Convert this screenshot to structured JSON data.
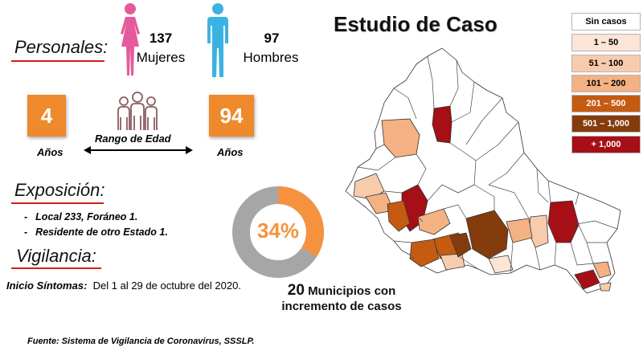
{
  "title": "Estudio de Caso",
  "personales": {
    "label": "Personales:",
    "women_count": "137",
    "women_label": "Mujeres",
    "men_count": "97",
    "men_label": "Hombres"
  },
  "age_range": {
    "min": "4",
    "max": "94",
    "label": "Rango de Edad",
    "unit_min": "Años",
    "unit_max": "Años"
  },
  "exposicion": {
    "label": "Exposición:",
    "items": [
      "Local  233, Foráneo 1.",
      "Residente de otro Estado 1."
    ]
  },
  "vigilancia": {
    "label": "Vigilancia:",
    "inicio_label": "Inicio Síntomas:",
    "inicio_text": "Del 1 al 29 de octubre del 2020."
  },
  "donut": {
    "percent_label": "34%",
    "fraction": 0.34,
    "fill_color": "#f5923e",
    "rest_color": "#a6a6a6"
  },
  "municipios": {
    "count": "20",
    "text_line1": "Municipios con",
    "text_line2": "incremento de casos"
  },
  "legend": [
    {
      "label": "Sin casos",
      "color": "#ffffff",
      "text_color": "#000000"
    },
    {
      "label": "1 – 50",
      "color": "#fce4d6",
      "text_color": "#000000"
    },
    {
      "label": "51 – 100",
      "color": "#f8cbad",
      "text_color": "#000000"
    },
    {
      "label": "101 – 200",
      "color": "#f4b183",
      "text_color": "#000000"
    },
    {
      "label": "201 – 500",
      "color": "#c55a11",
      "text_color": "#ffffff"
    },
    {
      "label": "501 – 1,000",
      "color": "#843c0c",
      "text_color": "#ffffff"
    },
    {
      "label": "+ 1,000",
      "color": "#a50f15",
      "text_color": "#ffffff"
    }
  ],
  "source": "Fuente: Sistema de Vigilancia de Coronavirus, SSSLP."
}
